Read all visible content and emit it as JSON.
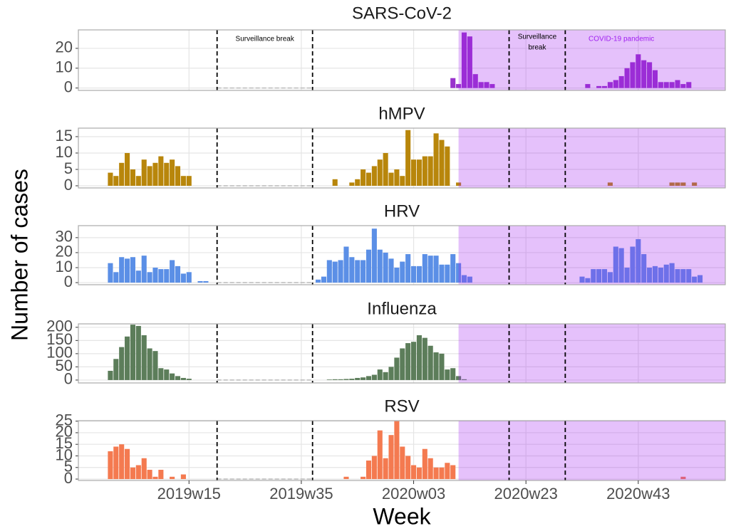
{
  "chart_data": [
    {
      "type": "bar",
      "title": "SARS-CoV-2",
      "color": "#9932cc",
      "ylabel": "Number of cases",
      "x": [
        62,
        63,
        64,
        65,
        66,
        67,
        68,
        69,
        86,
        88,
        89,
        90,
        91,
        92,
        93,
        94,
        95,
        96,
        97,
        98,
        99,
        100,
        101,
        102,
        103,
        104
      ],
      "values": [
        5,
        2,
        28,
        26,
        7,
        3,
        3,
        2,
        2,
        1,
        1,
        3,
        4,
        6,
        10,
        13,
        17,
        14,
        13,
        9,
        3,
        3,
        3,
        4,
        2,
        3
      ],
      "ylim": [
        -1.2,
        29.3
      ],
      "yticks": [
        0,
        10,
        20
      ],
      "vlines": [
        20,
        37,
        72,
        82
      ],
      "shade_from": 63,
      "shade_color": "#a020f0",
      "annotations": [
        {
          "text": "Surveillance break",
          "x": 28.5,
          "y": 24.6,
          "color": "#000000"
        },
        {
          "text": "Surveillance",
          "x": 77,
          "y": 25.7,
          "color": "#000000"
        },
        {
          "text": "break",
          "x": 77,
          "y": 20.4,
          "color": "#000000"
        },
        {
          "text": "COVID-19 pandemic",
          "x": 92,
          "y": 24.6,
          "color": "#a020f0"
        }
      ]
    },
    {
      "type": "bar",
      "title": "hMPV",
      "color": "#b8860b",
      "x": [
        1,
        2,
        3,
        4,
        5,
        6,
        7,
        8,
        9,
        10,
        11,
        12,
        13,
        14,
        15,
        41,
        44,
        45,
        46,
        47,
        48,
        49,
        50,
        51,
        52,
        53,
        54,
        55,
        56,
        57,
        58,
        59,
        60,
        61,
        63,
        90,
        101,
        102,
        103,
        105
      ],
      "values": [
        4,
        3,
        7,
        10,
        5,
        3,
        8,
        6,
        7,
        9,
        7,
        8,
        6,
        3,
        3,
        2,
        1,
        2,
        5,
        4,
        6,
        8,
        10,
        4,
        5,
        3,
        17,
        8,
        8,
        9,
        9,
        16,
        14,
        12,
        1,
        1,
        1,
        1,
        1,
        1
      ],
      "ylim": [
        -0.65,
        17.6
      ],
      "yticks": [
        0,
        5,
        10,
        15
      ]
    },
    {
      "type": "bar",
      "title": "HRV",
      "color": "#5b8fe6",
      "x": [
        1,
        2,
        3,
        4,
        5,
        6,
        7,
        8,
        9,
        10,
        11,
        12,
        13,
        14,
        15,
        17,
        18,
        38,
        39,
        40,
        41,
        42,
        43,
        44,
        45,
        46,
        47,
        48,
        49,
        50,
        51,
        52,
        53,
        54,
        55,
        56,
        57,
        58,
        59,
        60,
        61,
        62,
        63,
        64,
        65,
        85,
        86,
        87,
        88,
        89,
        90,
        91,
        92,
        93,
        94,
        95,
        96,
        97,
        98,
        99,
        100,
        101,
        102,
        103,
        104,
        105,
        106
      ],
      "values": [
        13,
        7,
        17,
        16,
        17,
        8,
        18,
        7,
        10,
        9,
        9,
        15,
        11,
        6,
        7,
        1,
        1,
        2,
        4,
        15,
        14,
        15,
        24,
        17,
        15,
        15,
        22,
        36,
        22,
        20,
        16,
        10,
        14,
        19,
        11,
        11,
        19,
        18,
        18,
        12,
        12,
        19,
        13,
        5,
        4,
        4,
        3,
        9,
        9,
        9,
        7,
        24,
        23,
        10,
        24,
        29,
        19,
        10,
        11,
        10,
        12,
        13,
        9,
        9,
        9,
        4,
        5
      ],
      "ylim": [
        -1.4,
        38
      ],
      "yticks": [
        0,
        10,
        20,
        30
      ]
    },
    {
      "type": "bar",
      "title": "Influenza",
      "color": "#5c7d5a",
      "x": [
        1,
        2,
        3,
        4,
        5,
        6,
        7,
        8,
        9,
        10,
        11,
        12,
        13,
        14,
        15,
        40,
        41,
        42,
        43,
        44,
        45,
        46,
        47,
        48,
        49,
        50,
        51,
        52,
        53,
        54,
        55,
        56,
        57,
        58,
        59,
        60,
        61,
        62,
        63,
        64
      ],
      "values": [
        35,
        80,
        125,
        165,
        210,
        205,
        170,
        120,
        110,
        45,
        40,
        25,
        15,
        8,
        5,
        2,
        3,
        3,
        4,
        5,
        8,
        10,
        15,
        20,
        40,
        30,
        50,
        85,
        120,
        140,
        145,
        170,
        160,
        130,
        105,
        100,
        40,
        45,
        15,
        3
      ],
      "ylim": [
        -11,
        213
      ],
      "yticks": [
        0,
        50,
        100,
        150,
        200
      ]
    },
    {
      "type": "bar",
      "title": "RSV",
      "color": "#f47a50",
      "xlabel": "Week",
      "x": [
        1,
        2,
        3,
        4,
        5,
        6,
        7,
        8,
        9,
        10,
        12,
        14,
        43,
        46,
        47,
        48,
        49,
        50,
        51,
        52,
        53,
        54,
        55,
        56,
        57,
        58,
        59,
        60,
        61,
        62,
        103
      ],
      "values": [
        12,
        14,
        15,
        13,
        5,
        6,
        9,
        4,
        1,
        4,
        1,
        2,
        1,
        1,
        8,
        10,
        21,
        9,
        19,
        25,
        14,
        10,
        6,
        5,
        13,
        9,
        5,
        5,
        7,
        6,
        1
      ],
      "ylim": [
        -0.6,
        25.2
      ],
      "yticks": [
        0,
        5,
        10,
        15,
        20,
        25
      ],
      "xlim": [
        -4.7,
        110.5
      ],
      "xticks": [
        {
          "value": 15,
          "label": "2019w15"
        },
        {
          "value": 35,
          "label": "2019w35"
        },
        {
          "value": 55,
          "label": "2020w03"
        },
        {
          "value": 75,
          "label": "2020w23"
        },
        {
          "value": 95,
          "label": "2020w43"
        }
      ]
    }
  ]
}
